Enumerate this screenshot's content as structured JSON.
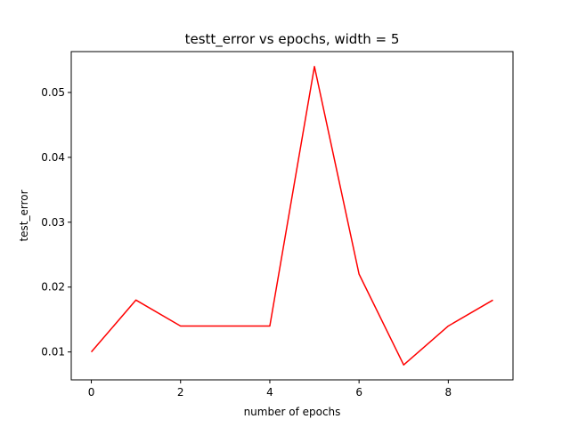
{
  "chart_data": {
    "type": "line",
    "title": "testt_error vs epochs, width = 5",
    "xlabel": "number of epochs",
    "ylabel": "test_error",
    "x": [
      0,
      1,
      2,
      3,
      4,
      5,
      6,
      7,
      8,
      9
    ],
    "series": [
      {
        "values": [
          0.01,
          0.018,
          0.014,
          0.014,
          0.014,
          0.054,
          0.022,
          0.008,
          0.014,
          0.018
        ],
        "color": "#ff0000"
      }
    ],
    "xlim": [
      -0.45,
      9.45
    ],
    "ylim": [
      0.0057,
      0.0563
    ],
    "xticks": [
      0,
      2,
      4,
      6,
      8
    ],
    "xtick_labels": [
      "0",
      "2",
      "4",
      "6",
      "8"
    ],
    "yticks": [
      0.01,
      0.02,
      0.03,
      0.04,
      0.05
    ],
    "ytick_labels": [
      "0.01",
      "0.02",
      "0.03",
      "0.04",
      "0.05"
    ],
    "grid": false,
    "legend": "none"
  }
}
